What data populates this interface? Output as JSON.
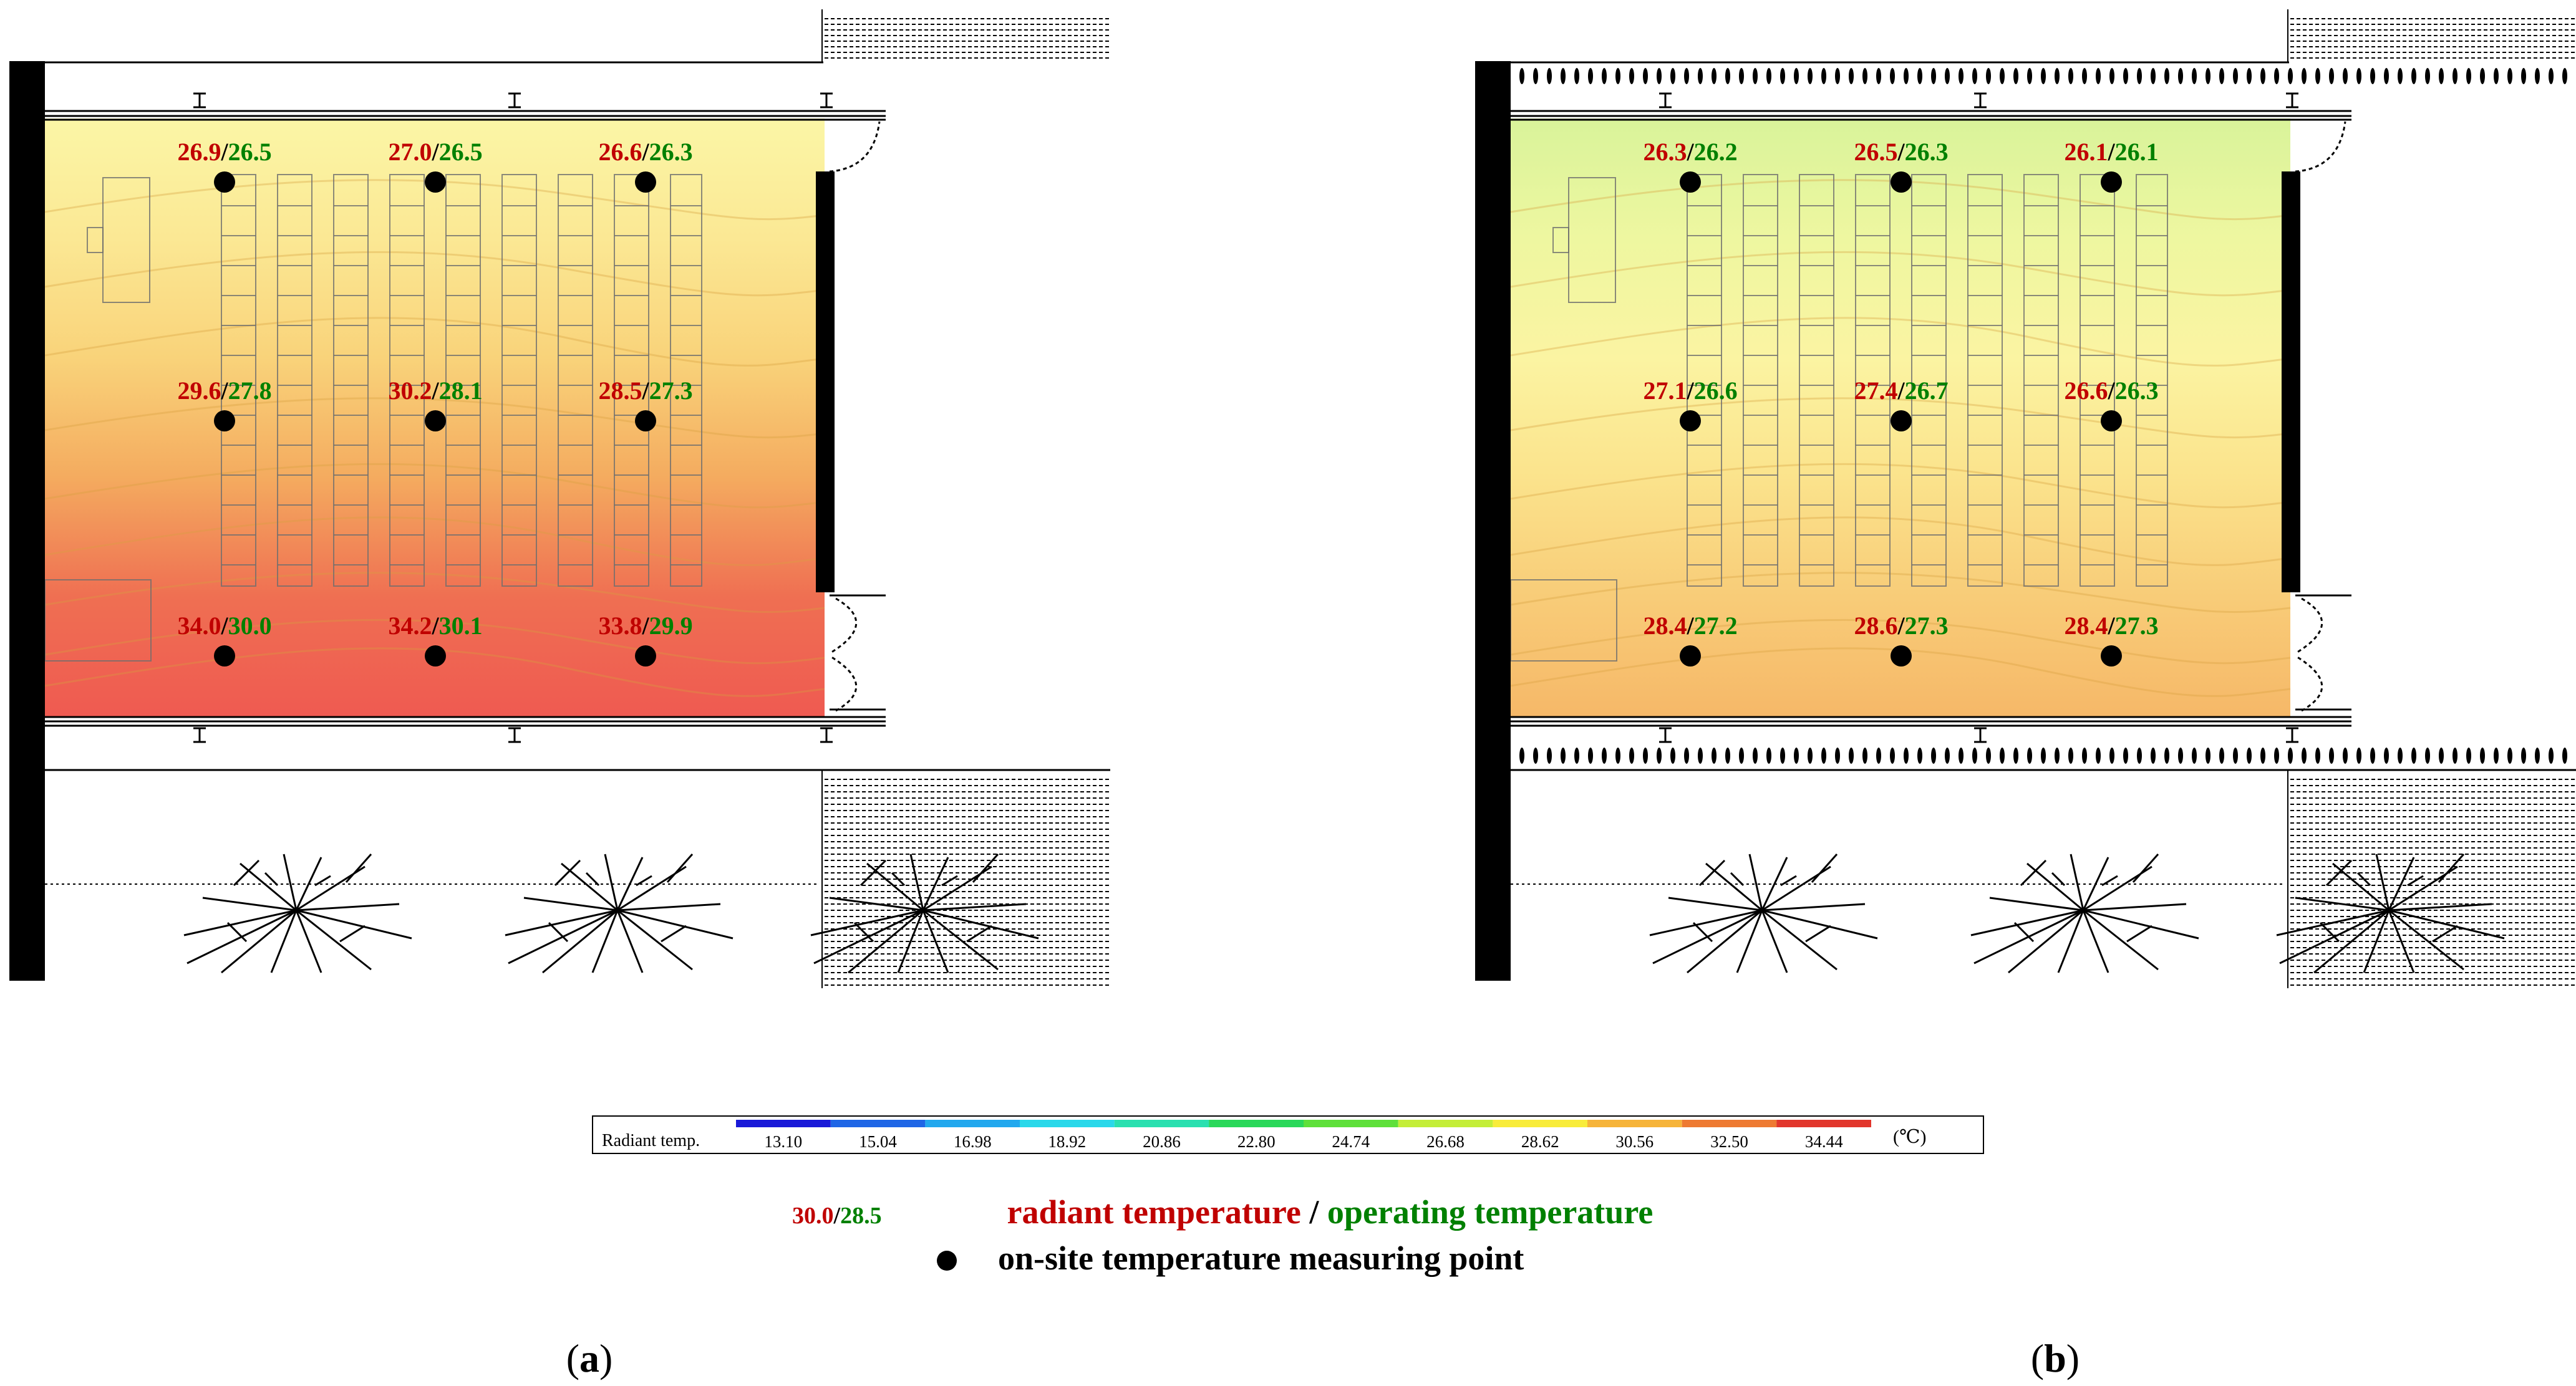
{
  "panels": [
    {
      "id": "a",
      "caption_open": "(",
      "caption_letter": "a",
      "caption_close": ")",
      "gradient": [
        "#fbf6a6",
        "#fbe894",
        "#f9d37a",
        "#f4ab5f",
        "#ef6f52",
        "#ef5a51"
      ],
      "points": [
        {
          "radiant": "26.9",
          "operating": "26.5"
        },
        {
          "radiant": "27.0",
          "operating": "26.5"
        },
        {
          "radiant": "26.6",
          "operating": "26.3"
        },
        {
          "radiant": "29.6",
          "operating": "27.8"
        },
        {
          "radiant": "30.2",
          "operating": "28.1"
        },
        {
          "radiant": "28.5",
          "operating": "27.3"
        },
        {
          "radiant": "34.0",
          "operating": "30.0"
        },
        {
          "radiant": "34.2",
          "operating": "30.1"
        },
        {
          "radiant": "33.8",
          "operating": "29.9"
        }
      ]
    },
    {
      "id": "b",
      "caption_open": "(",
      "caption_letter": "b",
      "caption_close": ")",
      "gradient": [
        "#d9f39a",
        "#eef7a0",
        "#fbf4a2",
        "#fbe38c",
        "#f8cc78",
        "#f6b868"
      ],
      "points": [
        {
          "radiant": "26.3",
          "operating": "26.2"
        },
        {
          "radiant": "26.5",
          "operating": "26.3"
        },
        {
          "radiant": "26.1",
          "operating": "26.1"
        },
        {
          "radiant": "27.1",
          "operating": "26.6"
        },
        {
          "radiant": "27.4",
          "operating": "26.7"
        },
        {
          "radiant": "26.6",
          "operating": "26.3"
        },
        {
          "radiant": "28.4",
          "operating": "27.2"
        },
        {
          "radiant": "28.6",
          "operating": "27.3"
        },
        {
          "radiant": "28.4",
          "operating": "27.3"
        }
      ]
    }
  ],
  "colorbar": {
    "label": "Radiant temp.",
    "unit": "(℃)",
    "ticks": [
      "13.10",
      "15.04",
      "16.98",
      "18.92",
      "20.86",
      "22.80",
      "24.74",
      "26.68",
      "28.62",
      "30.56",
      "32.50",
      "34.44"
    ],
    "colors": [
      "#1a1ad8",
      "#1f66e6",
      "#22a8ee",
      "#2ad8ea",
      "#2ae0b0",
      "#2ad85a",
      "#5ee03a",
      "#c4ee38",
      "#f8ec3a",
      "#f6b43a",
      "#ee7a32",
      "#e2362c"
    ]
  },
  "legend": {
    "example_radiant": "30.0",
    "slash": "/",
    "example_operating": "28.5",
    "radiant_label": "radiant temperature",
    "separator": " / ",
    "operating_label": "operating temperature",
    "point_label": "on-site temperature measuring point"
  },
  "colors": {
    "radiant_text": "#c00000",
    "operating_text": "#008000",
    "wall": "#000000"
  }
}
